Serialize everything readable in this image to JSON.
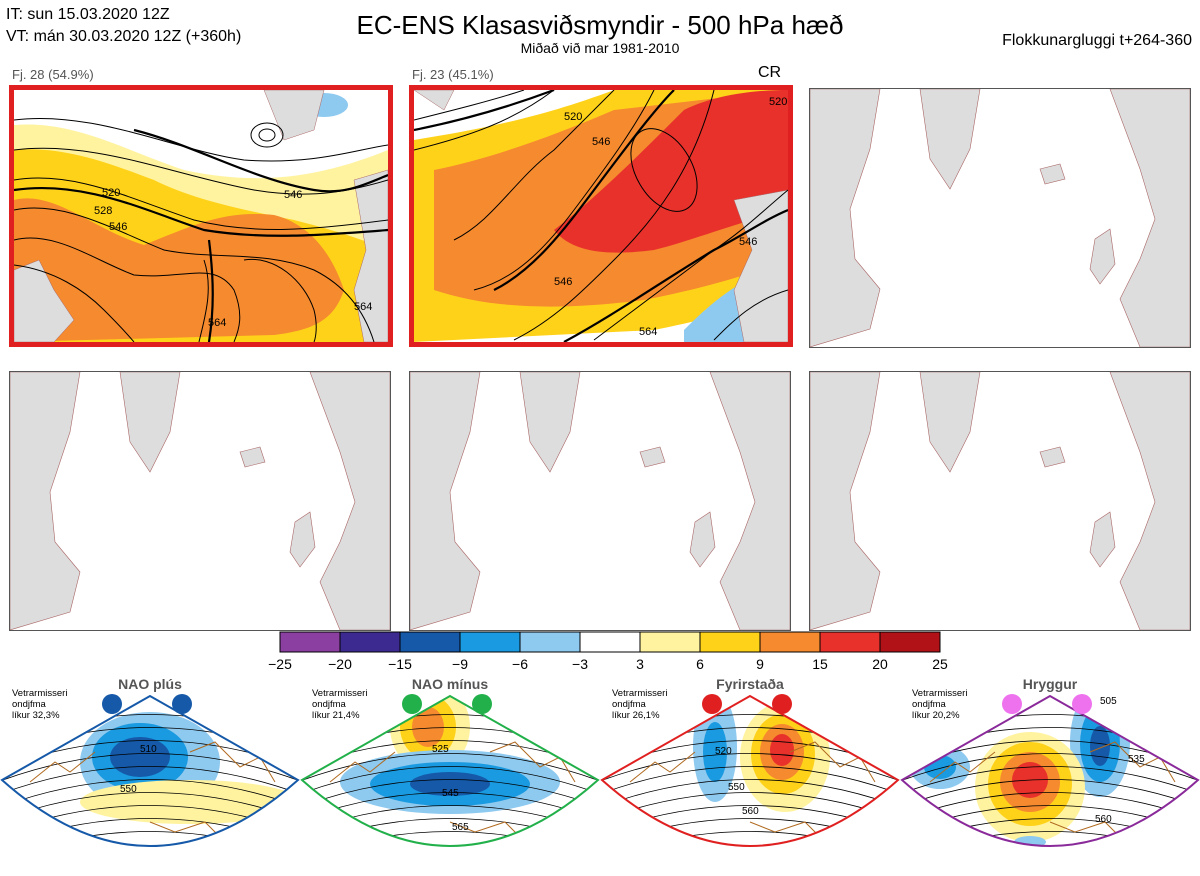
{
  "header": {
    "it_line": "IT: sun 15.03.2020 12Z",
    "vt_line": "VT: mán 30.03.2020 12Z  (+360h)",
    "title": "EC-ENS Klasasviðsmyndir - 500 hPa hæð",
    "subtitle": "Miðað við mar 1981-2010",
    "window": "Flokkunargluggi t+264-360"
  },
  "panels": [
    {
      "label": "Fj. 28 (54.9%)",
      "active": true,
      "contours": [
        "520",
        "528",
        "546",
        "564",
        "546",
        "564"
      ]
    },
    {
      "label": "Fj. 23 (45.1%)",
      "active": true,
      "tag": "CR",
      "contours": [
        "520",
        "546",
        "546",
        "546",
        "564",
        "520"
      ]
    },
    {
      "label": "",
      "active": false
    },
    {
      "label": "",
      "active": false
    },
    {
      "label": "",
      "active": false
    },
    {
      "label": "",
      "active": false
    }
  ],
  "colorbar": {
    "colors": [
      "#8b3fa0",
      "#3d2a90",
      "#1559a8",
      "#1a9ae0",
      "#8ec9ef",
      "#ffffff",
      "#fff3a0",
      "#ffd21a",
      "#f58a2e",
      "#e8312a",
      "#b01218"
    ],
    "ticks": [
      "−25",
      "−20",
      "−15",
      "−9",
      "−6",
      "−3",
      "3",
      "6",
      "9",
      "15",
      "20",
      "25"
    ]
  },
  "regimes": [
    {
      "name": "NAO plús",
      "stat1": "Vetrarmisseri",
      "stat2": "ondjfma",
      "stat3": "líkur 32,3%",
      "dot_color": "#1559a8",
      "frame_color": "#1559a8",
      "contours": [
        "510",
        "550"
      ]
    },
    {
      "name": "NAO mínus",
      "stat1": "Vetrarmisseri",
      "stat2": "ondjfma",
      "stat3": "líkur 21,4%",
      "dot_color": "#22b04a",
      "frame_color": "#22b04a",
      "contours": [
        "525",
        "545",
        "565"
      ]
    },
    {
      "name": "Fyrirstaða",
      "stat1": "Vetrarmisseri",
      "stat2": "ondjfma",
      "stat3": "líkur 26,1%",
      "dot_color": "#e02020",
      "frame_color": "#e02020",
      "contours": [
        "520",
        "550",
        "560"
      ]
    },
    {
      "name": "Hryggur",
      "stat1": "Vetrarmisseri",
      "stat2": "ondjfma",
      "stat3": "líkur 20,2%",
      "dot_color": "#ee72ee",
      "frame_color": "#8a2a9a",
      "contours": [
        "505",
        "535",
        "560"
      ]
    }
  ]
}
